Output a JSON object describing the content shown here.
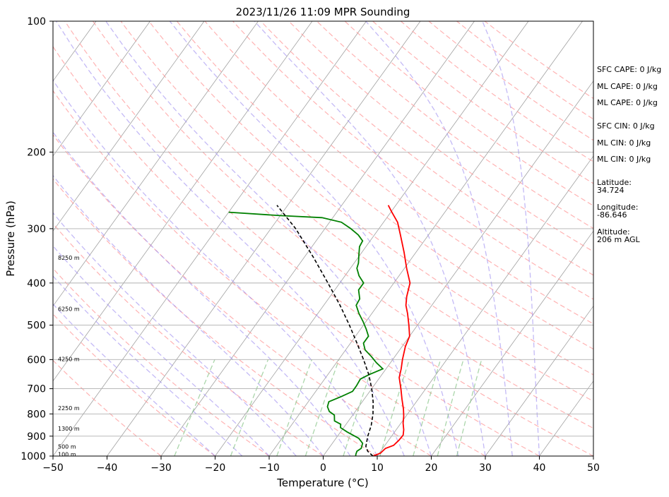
{
  "chart_data": {
    "type": "line",
    "title": "2023/11/26 11:09 MPR Sounding",
    "xlabel": "Temperature (°C)",
    "ylabel": "Pressure (hPa)",
    "xlim": [
      -50,
      50
    ],
    "ylim": [
      1000,
      100
    ],
    "y_scale": "log",
    "x_ticks": [
      "−50",
      "−40",
      "−30",
      "−20",
      "−10",
      "0",
      "10",
      "20",
      "30",
      "40",
      "50"
    ],
    "x_tick_values": [
      -50,
      -40,
      -30,
      -20,
      -10,
      0,
      10,
      20,
      30,
      40,
      50
    ],
    "y_ticks": [
      "100",
      "200",
      "300",
      "400",
      "500",
      "600",
      "700",
      "800",
      "900",
      "1000"
    ],
    "y_tick_values": [
      100,
      200,
      300,
      400,
      500,
      600,
      700,
      800,
      900,
      1000
    ],
    "grid": true,
    "skew": "skew-T",
    "series": [
      {
        "role": "temperature",
        "color": "#ff0000",
        "points": [
          [
            1000,
            9.2
          ],
          [
            985,
            10.2
          ],
          [
            960,
            10.5
          ],
          [
            945,
            11.6
          ],
          [
            920,
            11.9
          ],
          [
            895,
            12.0
          ],
          [
            870,
            11.4
          ],
          [
            840,
            10.4
          ],
          [
            810,
            9.6
          ],
          [
            780,
            8.6
          ],
          [
            740,
            7.0
          ],
          [
            700,
            5.4
          ],
          [
            660,
            3.6
          ],
          [
            630,
            2.8
          ],
          [
            600,
            1.8
          ],
          [
            560,
            0.6
          ],
          [
            530,
            0.0
          ],
          [
            500,
            -1.6
          ],
          [
            470,
            -3.4
          ],
          [
            450,
            -4.8
          ],
          [
            430,
            -5.8
          ],
          [
            400,
            -7.0
          ],
          [
            370,
            -9.6
          ],
          [
            340,
            -12.2
          ],
          [
            310,
            -15.2
          ],
          [
            290,
            -17.4
          ],
          [
            275,
            -19.8
          ],
          [
            265,
            -21.4
          ]
        ]
      },
      {
        "role": "dewpoint",
        "color": "#008000",
        "points": [
          [
            1000,
            6.0
          ],
          [
            990,
            5.8
          ],
          [
            975,
            5.6
          ],
          [
            960,
            6.0
          ],
          [
            935,
            5.6
          ],
          [
            910,
            4.2
          ],
          [
            880,
            1.2
          ],
          [
            860,
            -0.6
          ],
          [
            845,
            -1.0
          ],
          [
            830,
            -2.6
          ],
          [
            805,
            -3.4
          ],
          [
            790,
            -4.8
          ],
          [
            770,
            -5.8
          ],
          [
            750,
            -6.2
          ],
          [
            730,
            -4.6
          ],
          [
            710,
            -3.2
          ],
          [
            690,
            -3.2
          ],
          [
            665,
            -3.4
          ],
          [
            650,
            -2.4
          ],
          [
            630,
            -0.6
          ],
          [
            610,
            -2.6
          ],
          [
            590,
            -4.4
          ],
          [
            570,
            -6.4
          ],
          [
            550,
            -7.6
          ],
          [
            530,
            -7.6
          ],
          [
            510,
            -9.0
          ],
          [
            490,
            -10.6
          ],
          [
            470,
            -12.4
          ],
          [
            450,
            -14.0
          ],
          [
            435,
            -14.2
          ],
          [
            415,
            -15.6
          ],
          [
            400,
            -15.6
          ],
          [
            385,
            -17.4
          ],
          [
            370,
            -18.8
          ],
          [
            360,
            -19.2
          ],
          [
            345,
            -20.2
          ],
          [
            330,
            -21.2
          ],
          [
            320,
            -21.4
          ],
          [
            310,
            -23.0
          ],
          [
            300,
            -25.2
          ],
          [
            290,
            -27.8
          ],
          [
            283,
            -32.0
          ],
          [
            280,
            -40.0
          ],
          [
            275,
            -50.0
          ]
        ]
      },
      {
        "role": "parcel",
        "color": "#000000",
        "points": [
          [
            1000,
            9.2
          ],
          [
            975,
            7.6
          ],
          [
            950,
            6.6
          ],
          [
            900,
            5.6
          ],
          [
            850,
            4.8
          ],
          [
            800,
            3.6
          ],
          [
            750,
            2.0
          ],
          [
            700,
            0.0
          ],
          [
            650,
            -2.4
          ],
          [
            600,
            -5.4
          ],
          [
            550,
            -8.8
          ],
          [
            500,
            -12.6
          ],
          [
            450,
            -17.0
          ],
          [
            400,
            -22.2
          ],
          [
            350,
            -28.2
          ],
          [
            300,
            -35.4
          ],
          [
            265,
            -42.0
          ]
        ]
      }
    ],
    "height_labels": [
      {
        "text": "100 m",
        "p": 990
      },
      {
        "text": "500 m",
        "p": 950
      },
      {
        "text": "1300 m",
        "p": 865
      },
      {
        "text": "2250 m",
        "p": 775
      },
      {
        "text": "4250 m",
        "p": 598
      },
      {
        "text": "6250 m",
        "p": 459
      },
      {
        "text": "8250 m",
        "p": 350
      }
    ],
    "stats": [
      {
        "label": "SFC CAPE: 0 J/kg"
      },
      {
        "label": "ML CAPE: 0 J/kg"
      },
      {
        "label": "ML CAPE: 0 J/kg"
      },
      {
        "label": "SFC CIN: 0 J/kg"
      },
      {
        "label": "ML CIN: 0 J/kg"
      },
      {
        "label": "ML CIN: 0 J/kg"
      }
    ],
    "location": [
      {
        "label": "Latitude:",
        "value": "34.724"
      },
      {
        "label": "Longitude:",
        "value": "-86.646"
      },
      {
        "label": "Altitude:",
        "value": "206 m AGL"
      }
    ],
    "colors": {
      "dry_adiabat": "#ff9999",
      "moist_adiabat": "#9d8cf0",
      "mixing_ratio": "#88c488",
      "isotherm": "#a0a0a0"
    }
  }
}
